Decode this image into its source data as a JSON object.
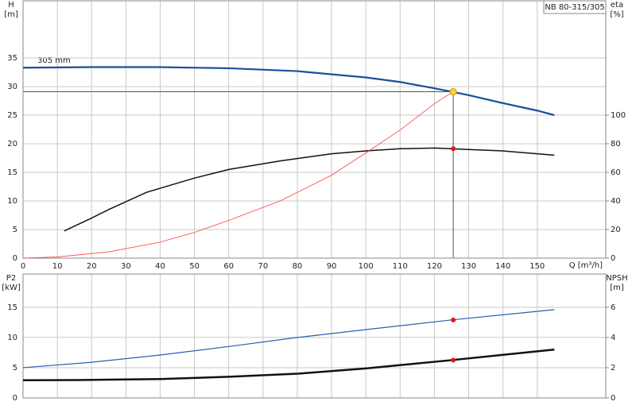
{
  "chart_data": [
    {
      "type": "line",
      "title": "NB 80-315/305",
      "annotation": "305 mm",
      "xlabel": "Q [m³/h]",
      "ylabel": [
        "H",
        "[m]"
      ],
      "y2label": [
        "eta",
        "[%]"
      ],
      "xlim": [
        0,
        170
      ],
      "ylim": [
        0,
        45
      ],
      "y2lim": [
        0,
        180
      ],
      "xticks": [
        0,
        10,
        20,
        30,
        40,
        50,
        60,
        70,
        80,
        90,
        100,
        110,
        120,
        130,
        140,
        150
      ],
      "yticks": [
        0,
        5,
        10,
        15,
        20,
        25,
        30,
        35
      ],
      "y2ticks": [
        0,
        20,
        40,
        60,
        80,
        100
      ],
      "grid": true,
      "series": [
        {
          "color": "#1a4f9c",
          "width": 2.2,
          "x": [
            0,
            20,
            40,
            60,
            80,
            100,
            110,
            120,
            125,
            130,
            140,
            150,
            155
          ],
          "values": [
            33.3,
            33.4,
            33.4,
            33.2,
            32.7,
            31.6,
            30.8,
            29.7,
            29.1,
            28.5,
            27.1,
            25.8,
            25
          ]
        },
        {
          "color": "#111111",
          "width": 1.5,
          "axis": "y2",
          "x": [
            12,
            20,
            25,
            36,
            50,
            60,
            75,
            90,
            100,
            110,
            120,
            125,
            130,
            140,
            150,
            155
          ],
          "values": [
            19,
            28,
            34,
            46,
            56,
            62,
            68,
            73,
            75,
            76.5,
            77,
            76.5,
            76,
            75,
            73,
            72
          ]
        },
        {
          "color": "#ff4040",
          "width": 0.8,
          "x": [
            0,
            10,
            25,
            40,
            50,
            60,
            75,
            90,
            100,
            110,
            120,
            125.5
          ],
          "values": [
            0,
            0.2,
            1.1,
            2.8,
            4.5,
            6.6,
            10,
            14.5,
            18.4,
            22.4,
            27,
            29.1
          ]
        }
      ],
      "operating_point": {
        "x": 125.5,
        "y": 29.1,
        "y2": 76.5
      }
    },
    {
      "type": "line",
      "ylabel": [
        "P2",
        "[kW]"
      ],
      "y2label": [
        "NPSH",
        "[m]"
      ],
      "xlim": [
        0,
        170
      ],
      "ylim": [
        0,
        20.5
      ],
      "y2lim": [
        0,
        8.2
      ],
      "yticks": [
        0,
        5,
        10,
        15
      ],
      "y2ticks": [
        0,
        2,
        4,
        6
      ],
      "grid": true,
      "series": [
        {
          "color": "#2a5fb0",
          "width": 1.2,
          "x": [
            0,
            20,
            40,
            60,
            80,
            100,
            125,
            155
          ],
          "values": [
            5,
            5.9,
            7.1,
            8.5,
            10,
            11.3,
            12.9,
            14.6
          ]
        },
        {
          "color": "#111111",
          "width": 2.5,
          "axis": "y2",
          "x": [
            0,
            16,
            40,
            60,
            80,
            100,
            125,
            140,
            155
          ],
          "values": [
            1.17,
            1.18,
            1.25,
            1.4,
            1.6,
            1.95,
            2.5,
            2.85,
            3.2
          ]
        }
      ],
      "operating_point": {
        "x": 125.5,
        "y": 12.9,
        "y2": 2.5
      }
    }
  ]
}
